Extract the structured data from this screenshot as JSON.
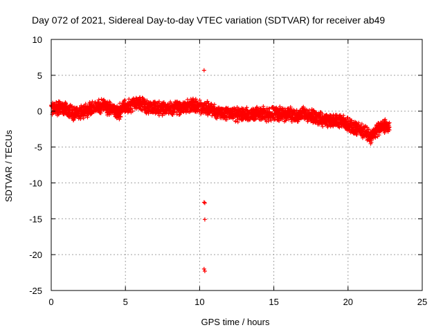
{
  "chart_data": {
    "type": "scatter",
    "title": "Day 072 of 2021, Sidereal Day-to-day VTEC variation (SDTVAR) for receiver ab49",
    "xlabel": "GPS time / hours",
    "ylabel": "SDTVAR / TECUs",
    "xlim": [
      0,
      25
    ],
    "ylim": [
      -25,
      10
    ],
    "x_ticks": [
      0,
      5,
      10,
      15,
      20,
      25
    ],
    "y_ticks": [
      10,
      5,
      0,
      -5,
      -10,
      -15,
      -20,
      -25
    ],
    "grid": true,
    "legend": "none",
    "marker": "plus",
    "series": [
      {
        "name": "SDTVAR",
        "color": "#ff0000",
        "approx_trend": {
          "x": [
            0.0,
            0.5,
            1.0,
            1.5,
            2.0,
            2.5,
            3.0,
            3.5,
            4.0,
            4.5,
            5.0,
            5.5,
            6.0,
            6.5,
            7.0,
            7.5,
            8.0,
            8.5,
            9.0,
            9.5,
            10.0,
            10.5,
            11.0,
            11.5,
            12.0,
            12.5,
            13.0,
            13.5,
            14.0,
            14.5,
            15.0,
            15.5,
            16.0,
            16.5,
            17.0,
            17.5,
            18.0,
            18.5,
            19.0,
            19.5,
            20.0,
            20.5,
            21.0,
            21.5,
            22.0,
            22.5,
            22.8
          ],
          "y": [
            0.3,
            0.5,
            0.2,
            -0.3,
            -0.2,
            0.2,
            0.5,
            0.8,
            0.3,
            -0.2,
            0.6,
            0.8,
            1.0,
            0.6,
            0.5,
            0.3,
            0.4,
            0.5,
            0.6,
            0.8,
            0.7,
            0.4,
            0.0,
            -0.3,
            -0.4,
            -0.5,
            -0.3,
            -0.6,
            -0.2,
            -0.5,
            -0.2,
            -0.5,
            -0.4,
            -0.8,
            -0.3,
            -0.7,
            -1.0,
            -1.3,
            -1.5,
            -1.3,
            -1.8,
            -2.3,
            -2.8,
            -3.5,
            -2.5,
            -2.0,
            -2.2
          ],
          "band": 1.1
        },
        "outliers": {
          "x": [
            10.3,
            10.35,
            10.35,
            10.3,
            10.35,
            10.3
          ],
          "y": [
            5.7,
            -12.8,
            -15.1,
            -22.0,
            -22.3,
            -12.7
          ]
        }
      }
    ]
  }
}
